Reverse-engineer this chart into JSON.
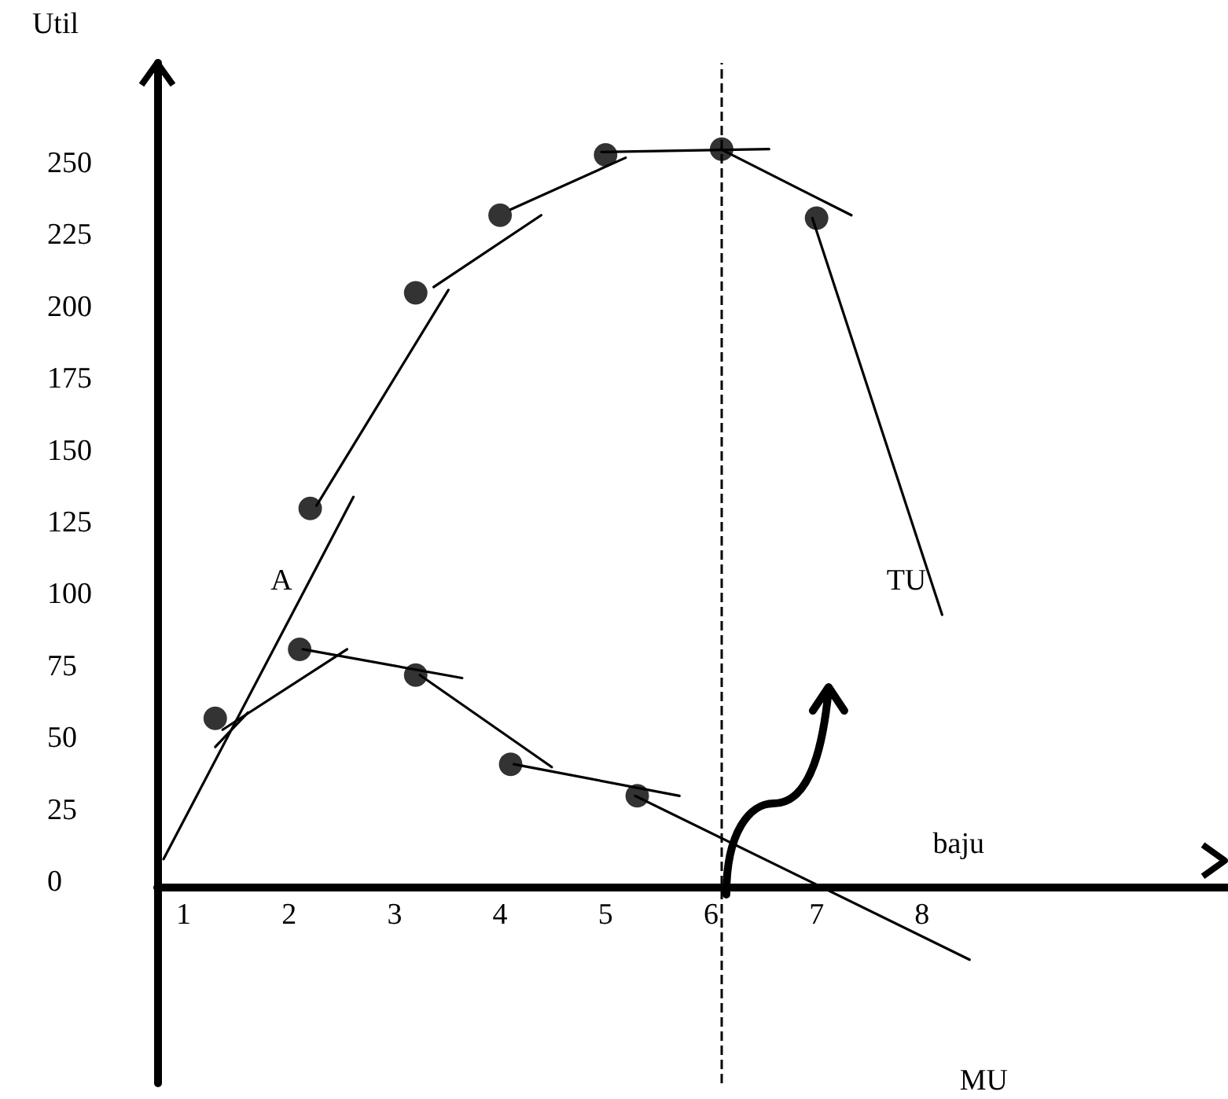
{
  "chart_data": {
    "type": "scatter",
    "ylabel": "Util",
    "xlabel": "baju",
    "xlim": [
      0.75,
      10.9
    ],
    "xticks": [
      1,
      2,
      3,
      4,
      5,
      6,
      7,
      8
    ],
    "ylim": [
      -70,
      285
    ],
    "yticks": [
      0,
      25,
      50,
      75,
      100,
      125,
      150,
      175,
      200,
      225,
      250
    ],
    "grid": false,
    "marker": "circle",
    "series": [
      {
        "color": "#000000",
        "x": [
          2.2,
          3.2,
          4.0,
          5.0,
          6.1,
          7.0
        ],
        "values": [
          130,
          205,
          232,
          253,
          255,
          231
        ]
      },
      {
        "color": "#000000",
        "x": [
          1.3,
          2.1,
          3.2,
          4.1,
          5.3
        ],
        "values": [
          57,
          81,
          72,
          41,
          30
        ]
      },
      {
        "type": "line",
        "marker": "none",
        "color": "#000000",
        "x": [
          0.81,
          2.61
        ],
        "values": [
          8,
          134
        ]
      },
      {
        "type": "line",
        "marker": "none",
        "color": "#000000",
        "x": [
          2.26,
          3.51
        ],
        "values": [
          131,
          206
        ]
      },
      {
        "type": "line",
        "marker": "none",
        "color": "#000000",
        "x": [
          3.37,
          4.39
        ],
        "values": [
          207,
          232
        ]
      },
      {
        "type": "line",
        "marker": "none",
        "color": "#000000",
        "x": [
          4.1,
          5.19
        ],
        "values": [
          234,
          252
        ]
      },
      {
        "type": "line",
        "marker": "none",
        "color": "#000000",
        "x": [
          4.96,
          6.55
        ],
        "values": [
          254,
          255
        ]
      },
      {
        "type": "line",
        "marker": "none",
        "color": "#000000",
        "x": [
          6.09,
          7.33
        ],
        "values": [
          255,
          232
        ]
      },
      {
        "type": "line",
        "marker": "none",
        "color": "#000000",
        "x": [
          6.96,
          8.19
        ],
        "values": [
          231,
          93
        ]
      },
      {
        "type": "line",
        "marker": "none",
        "color": "#000000",
        "x": [
          1.3,
          1.61
        ],
        "values": [
          47,
          59
        ]
      },
      {
        "type": "line",
        "marker": "none",
        "color": "#000000",
        "x": [
          1.37,
          2.55
        ],
        "values": [
          53,
          81
        ]
      },
      {
        "type": "line",
        "marker": "none",
        "color": "#000000",
        "x": [
          2.13,
          3.64
        ],
        "values": [
          81,
          71
        ]
      },
      {
        "type": "line",
        "marker": "none",
        "color": "#000000",
        "x": [
          3.24,
          4.49
        ],
        "values": [
          72,
          40
        ]
      },
      {
        "type": "line",
        "marker": "none",
        "color": "#000000",
        "x": [
          4.13,
          5.7
        ],
        "values": [
          41,
          30
        ]
      },
      {
        "type": "line",
        "marker": "none",
        "color": "#000000",
        "x": [
          5.28,
          8.45
        ],
        "values": [
          30,
          -27
        ]
      }
    ],
    "ref_lines": [
      {
        "axis": "x",
        "value": 6.1,
        "label": null,
        "color": "#000000",
        "line_style": "dashed"
      }
    ],
    "annotations": [
      {
        "text": "A",
        "x": 2.12,
        "y": 100
      },
      {
        "text": "TU",
        "x": 8.13,
        "y": 100
      },
      "MU"
    ],
    "line_style": "solid"
  }
}
